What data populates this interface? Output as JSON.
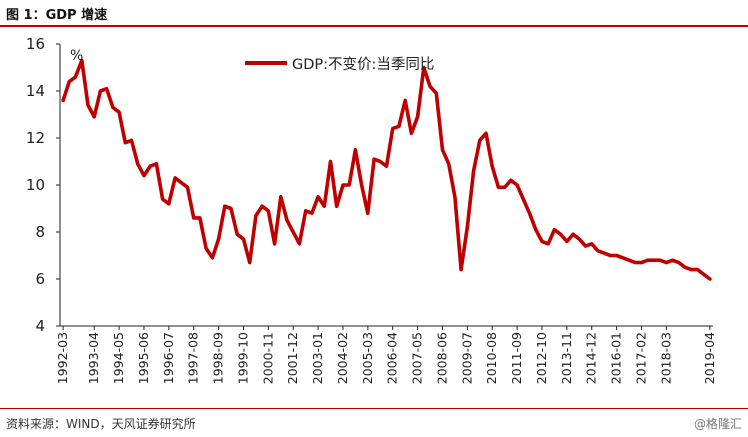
{
  "header": {
    "title": "图 1：GDP 增速"
  },
  "footer": {
    "source": "资料来源：WIND，天风证券研究所",
    "watermark": "@格隆汇"
  },
  "colors": {
    "series": "#c00000",
    "axis": "#222222",
    "rule": "#c00000"
  },
  "chart_data": {
    "type": "line",
    "title": "GDP 增速",
    "ylabel": "%",
    "xlabel": "",
    "ylim": [
      4,
      16
    ],
    "yticks": [
      4,
      6,
      8,
      10,
      12,
      14,
      16
    ],
    "grid": false,
    "legend": {
      "position": "top-center",
      "entries": [
        "GDP:不变价:当季同比"
      ]
    },
    "x_tick_labels": [
      "1992-03",
      "1993-04",
      "1994-05",
      "1995-06",
      "1996-07",
      "1997-08",
      "1998-09",
      "1999-10",
      "2000-11",
      "2001-12",
      "2003-01",
      "2004-02",
      "2005-03",
      "2006-04",
      "2007-05",
      "2008-06",
      "2009-07",
      "2010-08",
      "2011-09",
      "2012-10",
      "2013-11",
      "2014-12",
      "2016-01",
      "2017-02",
      "2018-03",
      "2019-04"
    ],
    "series": [
      {
        "name": "GDP:不变价:当季同比",
        "x_start": "1992Q1",
        "frequency": "quarterly",
        "values": [
          13.6,
          14.4,
          14.6,
          15.3,
          13.4,
          12.9,
          14.0,
          14.1,
          13.3,
          13.1,
          11.8,
          11.9,
          10.9,
          10.4,
          10.8,
          10.9,
          9.4,
          9.2,
          10.3,
          10.1,
          9.9,
          8.6,
          8.6,
          7.3,
          6.9,
          7.7,
          9.1,
          9.0,
          7.9,
          7.7,
          6.7,
          8.7,
          9.1,
          8.9,
          7.5,
          9.5,
          8.5,
          8.0,
          7.5,
          8.9,
          8.8,
          9.5,
          9.1,
          11.0,
          9.1,
          10.0,
          10.0,
          11.5,
          10.0,
          8.8,
          11.1,
          11.0,
          10.8,
          12.4,
          12.5,
          13.6,
          12.2,
          12.9,
          15.0,
          14.2,
          13.9,
          11.5,
          10.9,
          9.5,
          6.4,
          8.2,
          10.6,
          11.9,
          12.2,
          10.8,
          9.9,
          9.9,
          10.2,
          10.0,
          9.4,
          8.8,
          8.1,
          7.6,
          7.5,
          8.1,
          7.9,
          7.6,
          7.9,
          7.7,
          7.4,
          7.5,
          7.2,
          7.1,
          7.0,
          7.0,
          6.9,
          6.8,
          6.7,
          6.7,
          6.8,
          6.8,
          6.8,
          6.7,
          6.8,
          6.7,
          6.5,
          6.4,
          6.4,
          6.2,
          6.0
        ]
      }
    ]
  }
}
